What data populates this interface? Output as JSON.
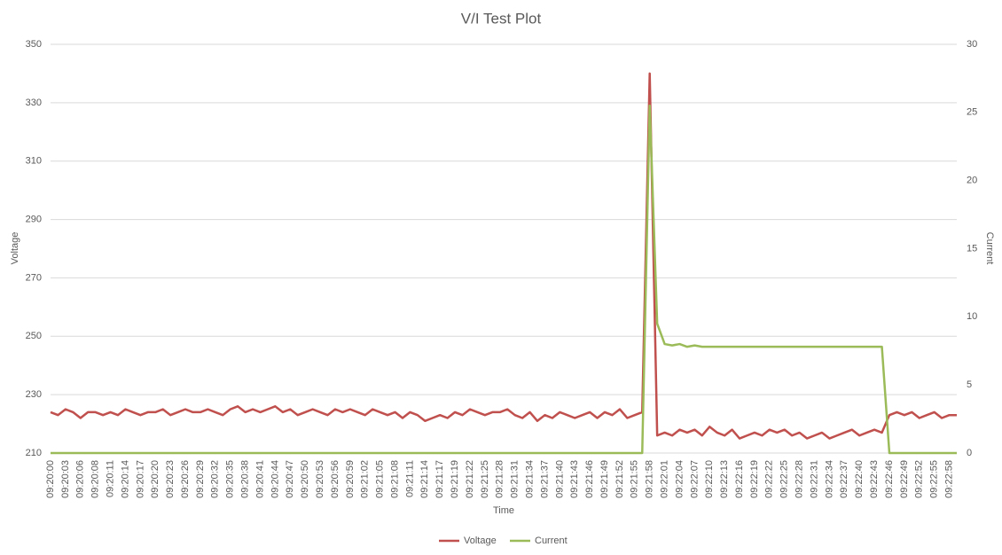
{
  "chart_data": {
    "type": "line",
    "title": "V/I Test Plot",
    "x_label": "Time",
    "y_label": "Voltage",
    "y2_label": "Current",
    "categories": [
      "09:20:00",
      null,
      "09:20:03",
      null,
      "09:20:06",
      null,
      "09:20:08",
      null,
      "09:20:11",
      null,
      "09:20:14",
      null,
      "09:20:17",
      null,
      "09:20:20",
      null,
      "09:20:23",
      null,
      "09:20:26",
      null,
      "09:20:29",
      null,
      "09:20:32",
      null,
      "09:20:35",
      null,
      "09:20:38",
      null,
      "09:20:41",
      null,
      "09:20:44",
      null,
      "09:20:47",
      null,
      "09:20:50",
      null,
      "09:20:53",
      null,
      "09:20:56",
      null,
      "09:20:59",
      null,
      "09:21:02",
      null,
      "09:21:05",
      null,
      "09:21:08",
      null,
      "09:21:11",
      null,
      "09:21:14",
      null,
      "09:21:17",
      null,
      "09:21:19",
      null,
      "09:21:22",
      null,
      "09:21:25",
      null,
      "09:21:28",
      null,
      "09:21:31",
      null,
      "09:21:34",
      null,
      "09:21:37",
      null,
      "09:21:40",
      null,
      "09:21:43",
      null,
      "09:21:46",
      null,
      "09:21:49",
      null,
      "09:21:52",
      null,
      "09:21:55",
      null,
      "09:21:58",
      null,
      "09:22:01",
      null,
      "09:22:04",
      null,
      "09:22:07",
      null,
      "09:22:10",
      null,
      "09:22:13",
      null,
      "09:22:16",
      null,
      "09:22:19",
      null,
      "09:22:22",
      null,
      "09:22:25",
      null,
      "09:22:28",
      null,
      "09:22:31",
      null,
      "09:22:34",
      null,
      "09:22:37",
      null,
      "09:22:40",
      null,
      "09:22:43",
      null,
      "09:22:46",
      null,
      "09:22:49",
      null,
      "09:22:52",
      null,
      "09:22:55",
      null,
      "09:22:58",
      null
    ],
    "series": [
      {
        "name": "Voltage",
        "color": "#c0504d",
        "values": [
          224,
          223,
          225,
          224,
          222,
          224,
          224,
          223,
          224,
          223,
          225,
          224,
          223,
          224,
          224,
          225,
          223,
          224,
          225,
          224,
          224,
          225,
          224,
          223,
          225,
          226,
          224,
          225,
          224,
          225,
          226,
          224,
          225,
          223,
          224,
          225,
          224,
          223,
          225,
          224,
          225,
          224,
          223,
          225,
          224,
          223,
          224,
          222,
          224,
          223,
          221,
          222,
          223,
          222,
          224,
          223,
          225,
          224,
          223,
          224,
          224,
          225,
          223,
          222,
          224,
          221,
          223,
          222,
          224,
          223,
          222,
          223,
          224,
          222,
          224,
          223,
          225,
          222,
          223,
          224,
          340,
          216,
          217,
          216,
          218,
          217,
          218,
          216,
          219,
          217,
          216,
          218,
          215,
          216,
          217,
          216,
          218,
          217,
          218,
          216,
          217,
          215,
          216,
          217,
          215,
          216,
          217,
          218,
          216,
          217,
          218,
          217,
          223,
          224,
          223,
          224,
          222,
          223,
          224,
          222,
          223,
          223
        ]
      },
      {
        "name": "Current",
        "color": "#9bbb59",
        "axis": "y2",
        "values": [
          0,
          0,
          0,
          0,
          0,
          0,
          0,
          0,
          0,
          0,
          0,
          0,
          0,
          0,
          0,
          0,
          0,
          0,
          0,
          0,
          0,
          0,
          0,
          0,
          0,
          0,
          0,
          0,
          0,
          0,
          0,
          0,
          0,
          0,
          0,
          0,
          0,
          0,
          0,
          0,
          0,
          0,
          0,
          0,
          0,
          0,
          0,
          0,
          0,
          0,
          0,
          0,
          0,
          0,
          0,
          0,
          0,
          0,
          0,
          0,
          0,
          0,
          0,
          0,
          0,
          0,
          0,
          0,
          0,
          0,
          0,
          0,
          0,
          0,
          0,
          0,
          0,
          0,
          0,
          0,
          25.5,
          9.5,
          8,
          7.9,
          8,
          7.8,
          7.9,
          7.8,
          7.8,
          7.8,
          7.8,
          7.8,
          7.8,
          7.8,
          7.8,
          7.8,
          7.8,
          7.8,
          7.8,
          7.8,
          7.8,
          7.8,
          7.8,
          7.8,
          7.8,
          7.8,
          7.8,
          7.8,
          7.8,
          7.8,
          7.8,
          7.8,
          0,
          0,
          0,
          0,
          0,
          0,
          0,
          0,
          0,
          0
        ]
      }
    ],
    "ylim": [
      210,
      350
    ],
    "yticks": [
      210,
      230,
      250,
      270,
      290,
      310,
      330,
      350
    ],
    "y2lim": [
      0,
      30
    ],
    "y2ticks": [
      0,
      5,
      10,
      15,
      20,
      25,
      30
    ],
    "grid": true,
    "legend": "bottom"
  }
}
